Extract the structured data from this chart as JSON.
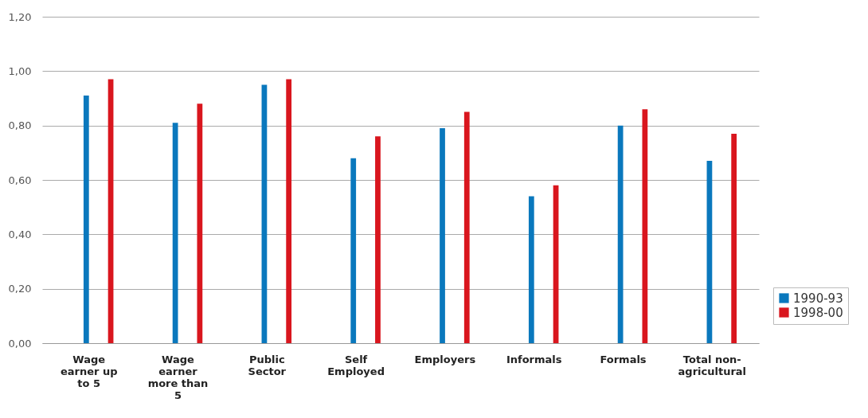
{
  "chart_data": {
    "type": "bar",
    "categories": [
      "Wage earner up to 5",
      "Wage earner more than 5",
      "Public Sector",
      "Self Employed",
      "Employers",
      "Informals",
      "Formals",
      "Total non-agricultural"
    ],
    "series": [
      {
        "name": "1990-93",
        "color": "#0a78bd",
        "values": [
          0.91,
          0.81,
          0.95,
          0.68,
          0.79,
          0.54,
          0.8,
          0.67
        ]
      },
      {
        "name": "1998-00",
        "color": "#d9161e",
        "values": [
          0.97,
          0.88,
          0.97,
          0.76,
          0.85,
          0.58,
          0.86,
          0.77
        ]
      }
    ],
    "ylim": [
      0,
      1.2
    ],
    "yticks": [
      {
        "value": 0,
        "label": "0,00"
      },
      {
        "value": 0.2,
        "label": "0,20"
      },
      {
        "value": 0.4,
        "label": "0,40"
      },
      {
        "value": 0.6,
        "label": "0,60"
      },
      {
        "value": 0.8,
        "label": "0,80"
      },
      {
        "value": 1.0,
        "label": "1,00"
      },
      {
        "value": 1.2,
        "label": "1,20"
      }
    ],
    "grid": "y",
    "legend": "bottom right"
  }
}
